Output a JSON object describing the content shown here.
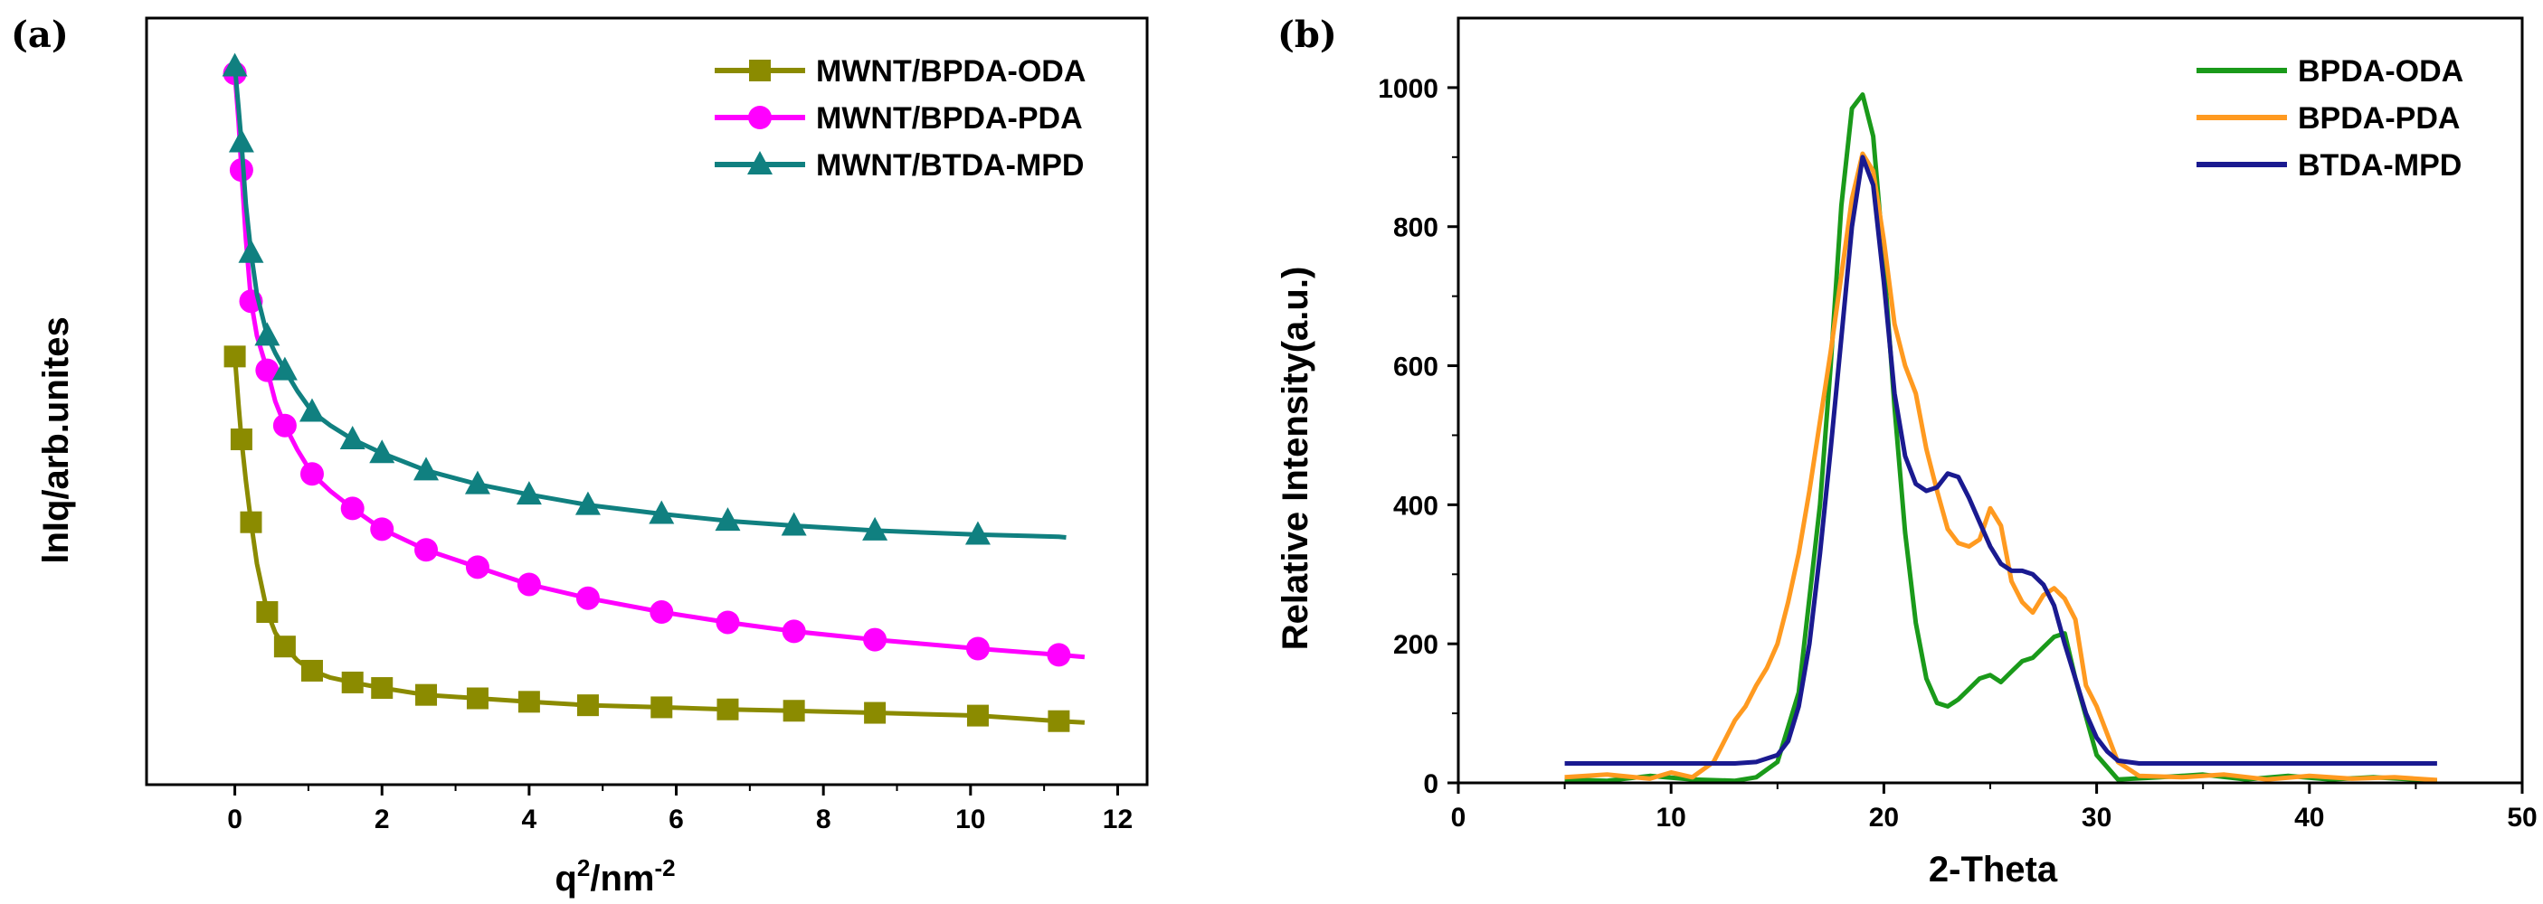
{
  "chart_data": [
    {
      "panel": "(a)",
      "type": "line",
      "xlabel": "q",
      "xlabel_sup": "2",
      "xlabel_tail": "/nm",
      "xlabel_sup2": "-2",
      "ylabel": "lnIq/arb.unites",
      "xlim": [
        -1.2,
        12.4
      ],
      "ylim": [
        -0.3,
        10.8
      ],
      "xticks": [
        0,
        2,
        4,
        6,
        8,
        10,
        12
      ],
      "yticks": [],
      "legend": "top-right",
      "series": [
        {
          "name": "MWNT/BPDA-ODA",
          "color": "#8b8b00",
          "marker": "square",
          "x": [
            0,
            0.09,
            0.22,
            0.44,
            0.68,
            1.05,
            1.6,
            2.0,
            2.6,
            3.3,
            4.0,
            4.8,
            5.8,
            6.7,
            7.6,
            8.7,
            10.1,
            11.2
          ],
          "y": [
            5.9,
            4.7,
            3.5,
            2.2,
            1.7,
            1.35,
            1.18,
            1.1,
            1.0,
            0.95,
            0.9,
            0.85,
            0.82,
            0.79,
            0.77,
            0.74,
            0.7,
            0.62
          ],
          "curve_x": [
            0,
            0.05,
            0.09,
            0.15,
            0.22,
            0.3,
            0.44,
            0.55,
            0.68,
            0.85,
            1.05,
            1.3,
            1.6,
            2.0,
            2.6,
            3.3,
            4.0,
            4.8,
            5.8,
            6.7,
            7.6,
            8.7,
            10.1,
            11.2,
            11.55
          ],
          "curve_y": [
            5.9,
            5.2,
            4.7,
            4.1,
            3.5,
            2.9,
            2.2,
            1.9,
            1.7,
            1.5,
            1.35,
            1.25,
            1.18,
            1.1,
            1.0,
            0.95,
            0.9,
            0.85,
            0.82,
            0.79,
            0.77,
            0.74,
            0.7,
            0.62,
            0.6
          ]
        },
        {
          "name": "MWNT/BPDA-PDA",
          "color": "#ff00ff",
          "marker": "circle",
          "x": [
            0,
            0.09,
            0.22,
            0.44,
            0.68,
            1.05,
            1.6,
            2.0,
            2.6,
            3.3,
            4.0,
            4.8,
            5.8,
            6.7,
            7.6,
            8.7,
            10.1,
            11.2
          ],
          "y": [
            10.0,
            8.6,
            6.7,
            5.7,
            4.9,
            4.2,
            3.7,
            3.4,
            3.1,
            2.85,
            2.6,
            2.4,
            2.2,
            2.05,
            1.92,
            1.8,
            1.67,
            1.58
          ],
          "curve_x": [
            0,
            0.05,
            0.09,
            0.15,
            0.22,
            0.3,
            0.44,
            0.55,
            0.68,
            0.85,
            1.05,
            1.3,
            1.6,
            2.0,
            2.6,
            3.3,
            4.0,
            4.8,
            5.8,
            6.7,
            7.6,
            8.7,
            10.1,
            11.2,
            11.55
          ],
          "curve_y": [
            10.0,
            9.3,
            8.6,
            7.6,
            6.7,
            6.2,
            5.7,
            5.25,
            4.9,
            4.55,
            4.2,
            3.95,
            3.7,
            3.4,
            3.1,
            2.85,
            2.6,
            2.4,
            2.2,
            2.05,
            1.92,
            1.8,
            1.67,
            1.58,
            1.55
          ]
        },
        {
          "name": "MWNT/BTDA-MPD",
          "color": "#108080",
          "marker": "triangle",
          "x": [
            0,
            0.09,
            0.22,
            0.44,
            0.68,
            1.05,
            1.6,
            2.0,
            2.6,
            3.3,
            4.0,
            4.8,
            5.8,
            6.7,
            7.6,
            8.7,
            10.1
          ],
          "y": [
            10.1,
            9.0,
            7.4,
            6.2,
            5.7,
            5.1,
            4.7,
            4.5,
            4.25,
            4.05,
            3.9,
            3.75,
            3.62,
            3.52,
            3.45,
            3.38,
            3.32
          ],
          "curve_x": [
            0,
            0.05,
            0.09,
            0.15,
            0.22,
            0.3,
            0.44,
            0.55,
            0.68,
            0.85,
            1.05,
            1.3,
            1.6,
            2.0,
            2.6,
            3.3,
            4.0,
            4.8,
            5.8,
            6.7,
            7.6,
            8.7,
            10.1,
            11.2,
            11.3
          ],
          "curve_y": [
            10.1,
            9.5,
            9.0,
            8.1,
            7.4,
            6.8,
            6.2,
            5.95,
            5.7,
            5.4,
            5.1,
            4.9,
            4.7,
            4.5,
            4.25,
            4.05,
            3.9,
            3.75,
            3.62,
            3.52,
            3.45,
            3.38,
            3.32,
            3.29,
            3.28
          ]
        }
      ]
    },
    {
      "panel": "(b)",
      "type": "line",
      "xlabel": "2-Theta",
      "ylabel": "Relative Intensity(a.u.)",
      "xlim": [
        0,
        50
      ],
      "ylim": [
        0,
        1100
      ],
      "xticks": [
        0,
        10,
        20,
        30,
        40,
        50
      ],
      "yticks": [
        0,
        200,
        400,
        600,
        800,
        1000
      ],
      "legend": "top-right",
      "series": [
        {
          "name": "BPDA-ODA",
          "color": "#1a9a1a",
          "x": [
            5,
            7,
            9,
            11,
            13,
            14,
            15,
            16,
            17,
            17.5,
            18,
            18.5,
            19,
            19.5,
            20,
            20.5,
            21,
            21.5,
            22,
            22.5,
            23,
            23.5,
            24,
            24.5,
            25,
            25.5,
            26,
            26.5,
            27,
            27.5,
            28,
            28.5,
            29,
            30,
            31,
            33,
            35,
            37,
            39,
            41,
            43,
            46
          ],
          "y": [
            5,
            3,
            10,
            5,
            3,
            8,
            30,
            130,
            400,
            600,
            830,
            970,
            990,
            930,
            750,
            540,
            360,
            230,
            150,
            115,
            110,
            120,
            135,
            150,
            155,
            145,
            160,
            175,
            180,
            195,
            210,
            215,
            150,
            40,
            5,
            8,
            12,
            5,
            10,
            5,
            8,
            3
          ]
        },
        {
          "name": "BPDA-PDA",
          "color": "#ff9a20",
          "x": [
            5,
            7,
            9,
            10,
            11,
            12,
            12.5,
            13,
            13.5,
            14,
            14.5,
            15,
            15.5,
            16,
            16.5,
            17,
            17.5,
            18,
            18.5,
            19,
            19.5,
            20,
            20.5,
            21,
            21.5,
            22,
            22.5,
            23,
            23.5,
            24,
            24.5,
            25,
            25.5,
            26,
            26.5,
            27,
            27.5,
            28,
            28.5,
            29,
            29.5,
            30,
            30.5,
            31,
            32,
            34,
            36,
            38,
            40,
            42,
            44,
            46
          ],
          "y": [
            8,
            12,
            6,
            15,
            8,
            30,
            60,
            90,
            110,
            140,
            165,
            200,
            260,
            330,
            420,
            520,
            620,
            730,
            840,
            905,
            880,
            780,
            660,
            600,
            560,
            480,
            420,
            365,
            345,
            340,
            350,
            395,
            370,
            290,
            260,
            245,
            270,
            280,
            265,
            235,
            140,
            110,
            70,
            30,
            10,
            8,
            12,
            5,
            10,
            6,
            8,
            4
          ]
        },
        {
          "name": "BTDA-MPD",
          "color": "#1a1a90",
          "x": [
            5,
            7,
            9,
            11,
            13,
            14,
            15,
            15.5,
            16,
            16.5,
            17,
            17.5,
            18,
            18.5,
            19,
            19.5,
            20,
            20.5,
            21,
            21.5,
            22,
            22.5,
            23,
            23.5,
            24,
            24.5,
            25,
            25.5,
            26,
            26.5,
            27,
            27.5,
            28,
            28.5,
            29,
            29.5,
            30,
            30.5,
            31,
            32,
            34,
            36,
            38,
            40,
            42,
            44,
            46
          ],
          "y": [
            28,
            28,
            28,
            28,
            28,
            30,
            40,
            60,
            110,
            200,
            330,
            480,
            640,
            800,
            900,
            860,
            720,
            560,
            470,
            430,
            420,
            425,
            445,
            440,
            410,
            375,
            340,
            315,
            305,
            305,
            300,
            285,
            255,
            200,
            150,
            100,
            65,
            45,
            32,
            28,
            28,
            28,
            28,
            28,
            28,
            28,
            28
          ]
        }
      ]
    }
  ]
}
